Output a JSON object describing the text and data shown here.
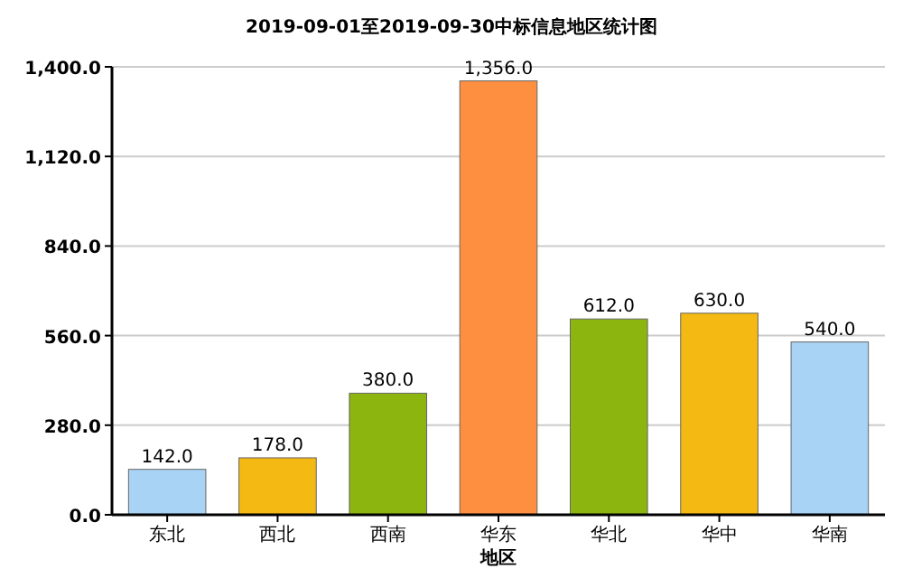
{
  "chart_data": {
    "type": "bar",
    "title": "2019-09-01至2019-09-30中标信息地区统计图",
    "xlabel": "地区",
    "categories": [
      "东北",
      "西北",
      "西南",
      "华东",
      "华北",
      "华中",
      "华南"
    ],
    "values": [
      142,
      178,
      380,
      1356,
      612,
      630,
      540
    ],
    "colors": [
      "#a9d3f5",
      "#f5b914",
      "#8cb50f",
      "#ff8f40",
      "#8cb50f",
      "#f5b914",
      "#a9d3f5"
    ],
    "value_labels": [
      "142.0",
      "178.0",
      "380.0",
      "1,356.0",
      "612.0",
      "630.0",
      "540.0"
    ],
    "ylim": [
      0,
      1400
    ],
    "yticks": [
      {
        "value": 0,
        "label": "0.0"
      },
      {
        "value": 280,
        "label": "280.0"
      },
      {
        "value": 560,
        "label": "560.0"
      },
      {
        "value": 840,
        "label": "840.0"
      },
      {
        "value": 1120,
        "label": "1,120.0"
      },
      {
        "value": 1400,
        "label": "1,400.0"
      }
    ],
    "grid": "y"
  }
}
